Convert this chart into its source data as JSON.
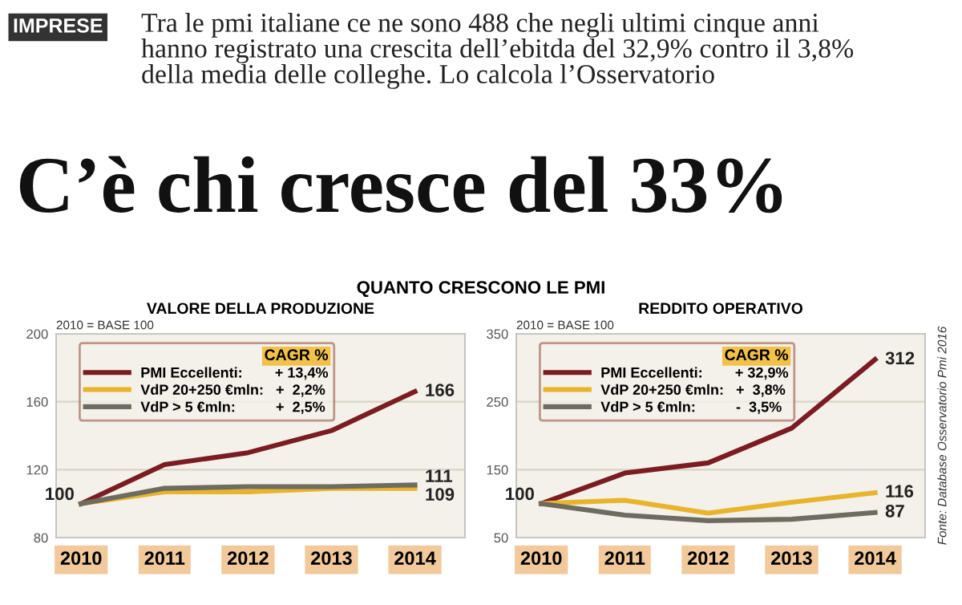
{
  "chart_data": [
    {
      "type": "line",
      "title": "VALORE DELLA PRODUZIONE",
      "subtitle": "QUANTO CRESCONO LE PMI",
      "annotations": [
        "IMPRESE",
        "Tra le pmi italiane ce ne sono 488 che negli ultimi cinque anni\nhanno registrato una crescita dell’ebitda del 32,9% contro il 3,8%\ndella media delle colleghe. Lo calcola l’Osservatorio",
        "C’è chi cresce del 33%",
        "2010 = BASE 100"
      ],
      "categories": [
        "2010",
        "2011",
        "2012",
        "2013",
        "2014"
      ],
      "legend_title": "CAGR %",
      "legend": "top left",
      "grid": "y",
      "line_style": "solid",
      "marker": "none",
      "ylim": [
        80,
        200
      ],
      "yticks": [
        80,
        120,
        160,
        200
      ],
      "series": [
        {
          "name": "PMI Eccellenti:        + 13,4%",
          "color": "#7b1c22",
          "values": [
            100,
            123,
            130,
            143,
            166
          ],
          "value_labels": [
            "100",
            null,
            null,
            null,
            "166"
          ]
        },
        {
          "name": "VdP 20+250 €mln:   +  2,2%",
          "color": "#e8b42c",
          "values": [
            100,
            107,
            107,
            109,
            109
          ],
          "value_labels": [
            null,
            null,
            null,
            null,
            "109"
          ]
        },
        {
          "name": "VdP > 5 €mln:          +  2,5%",
          "color": "#6e6b60",
          "values": [
            100,
            109,
            110,
            110,
            111
          ],
          "value_labels": [
            null,
            null,
            null,
            null,
            "111"
          ]
        }
      ]
    },
    {
      "type": "line",
      "title": "REDDITO OPERATIVO",
      "annotations": [
        "2010 = BASE 100",
        "Fonte: Database Osservatorio Pmi 2016"
      ],
      "categories": [
        "2010",
        "2011",
        "2012",
        "2013",
        "2014"
      ],
      "legend_title": "CAGR %",
      "legend": "top left",
      "grid": "y",
      "line_style": "solid",
      "marker": "none",
      "ylim": [
        50,
        350
      ],
      "yticks": [
        50,
        150,
        250,
        350
      ],
      "series": [
        {
          "name": "PMI Eccellenti:        + 32,9%",
          "color": "#7b1c22",
          "values": [
            100,
            145,
            160,
            211,
            312
          ],
          "value_labels": [
            "100",
            null,
            null,
            null,
            "312"
          ]
        },
        {
          "name": "VdP 20+250 €mln:   +  3,8%",
          "color": "#e8b42c",
          "values": [
            100,
            105,
            86,
            102,
            116
          ],
          "value_labels": [
            null,
            null,
            null,
            null,
            "116"
          ]
        },
        {
          "name": "VdP > 5 €mln:          -  3,5%",
          "color": "#6e6b60",
          "values": [
            100,
            83,
            75,
            77,
            87
          ],
          "value_labels": [
            null,
            null,
            null,
            null,
            "87"
          ]
        }
      ]
    }
  ]
}
